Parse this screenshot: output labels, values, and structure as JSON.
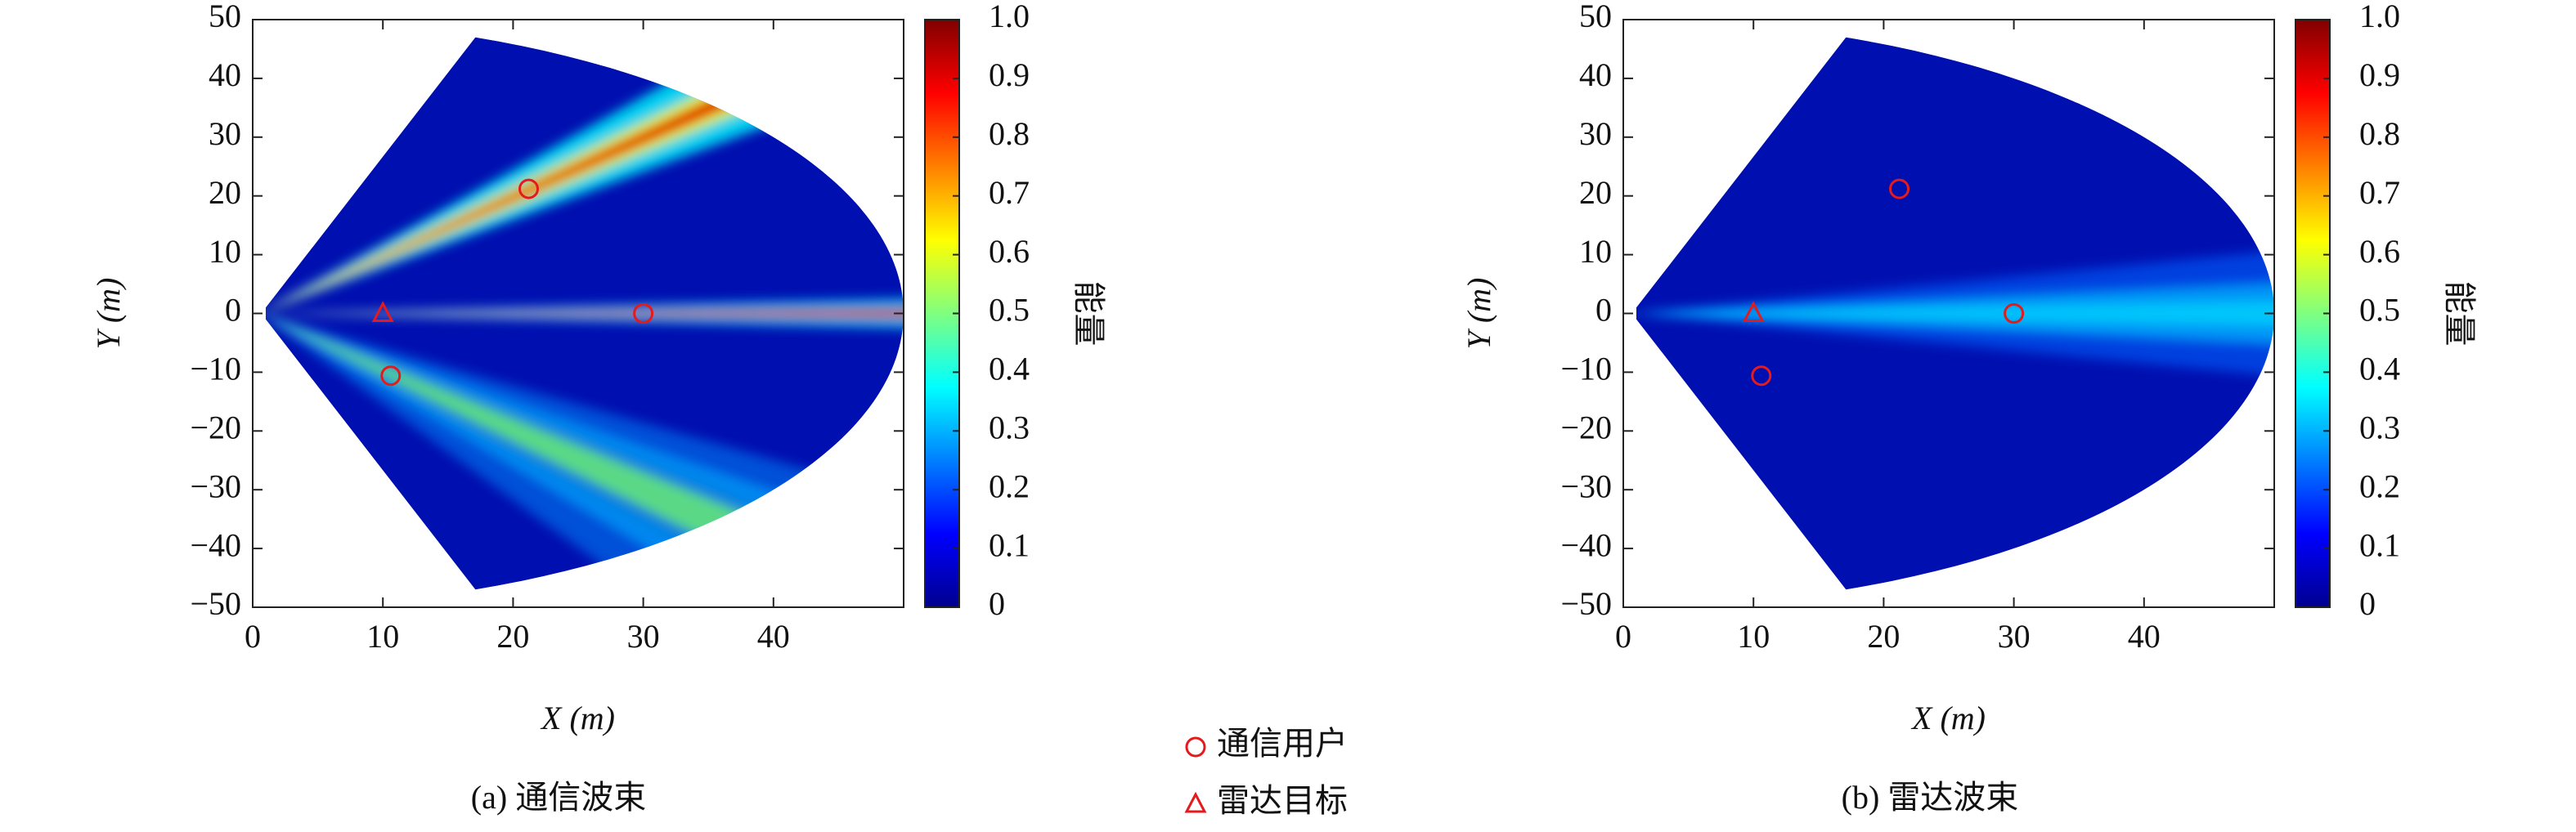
{
  "chart_data": [
    {
      "type": "heatmap",
      "caption": "(a) 通信波束",
      "xlabel": "X (m)",
      "ylabel": "Y (m)",
      "colorbar_label": "能量",
      "xlim": [
        0,
        50
      ],
      "ylim": [
        -50,
        50
      ],
      "xticks": [
        0,
        10,
        20,
        30,
        40
      ],
      "yticks": [
        {
          "value": -50,
          "label": "−50"
        },
        {
          "value": -40,
          "label": "−40"
        },
        {
          "value": -30,
          "label": "−30"
        },
        {
          "value": -20,
          "label": "−20"
        },
        {
          "value": -10,
          "label": "−10"
        },
        0,
        10,
        20,
        30,
        40,
        50
      ],
      "clim": [
        0,
        1
      ],
      "cticks": [
        0,
        0.1,
        0.2,
        0.3,
        0.4,
        0.5,
        0.6,
        0.7,
        0.8,
        0.9,
        {
          "value": 1,
          "label": "1.0"
        }
      ],
      "series": [
        {
          "name": "通信用户",
          "marker": "circle",
          "color": "#e41a1c",
          "x": [
            21.2,
            30,
            10.6
          ],
          "values": [
            21.2,
            0,
            -10.6
          ]
        },
        {
          "name": "雷达目标",
          "marker": "triangle",
          "color": "#e41a1c",
          "x": [
            10
          ],
          "values": [
            0
          ]
        }
      ]
    },
    {
      "type": "heatmap",
      "caption": "(b) 雷达波束",
      "xlabel": "X (m)",
      "ylabel": "Y (m)",
      "colorbar_label": "能量",
      "xlim": [
        0,
        50
      ],
      "ylim": [
        -50,
        50
      ],
      "xticks": [
        0,
        10,
        20,
        30,
        40
      ],
      "yticks": [
        {
          "value": -50,
          "label": "−50"
        },
        {
          "value": -40,
          "label": "−40"
        },
        {
          "value": -30,
          "label": "−30"
        },
        {
          "value": -20,
          "label": "−20"
        },
        {
          "value": -10,
          "label": "−10"
        },
        0,
        10,
        20,
        30,
        40,
        50
      ],
      "clim": [
        0,
        1
      ],
      "cticks": [
        0,
        0.1,
        0.2,
        0.3,
        0.4,
        0.5,
        0.6,
        0.7,
        0.8,
        0.9,
        {
          "value": 1,
          "label": "1.0"
        }
      ],
      "series": [
        {
          "marker": "circle",
          "color": "#e41a1c",
          "x": [
            21.2,
            30,
            10.6
          ],
          "values": [
            21.2,
            0,
            -10.6
          ]
        },
        {
          "marker": "triangle",
          "color": "#e41a1c",
          "x": [
            10
          ],
          "values": [
            0
          ]
        }
      ]
    }
  ]
}
